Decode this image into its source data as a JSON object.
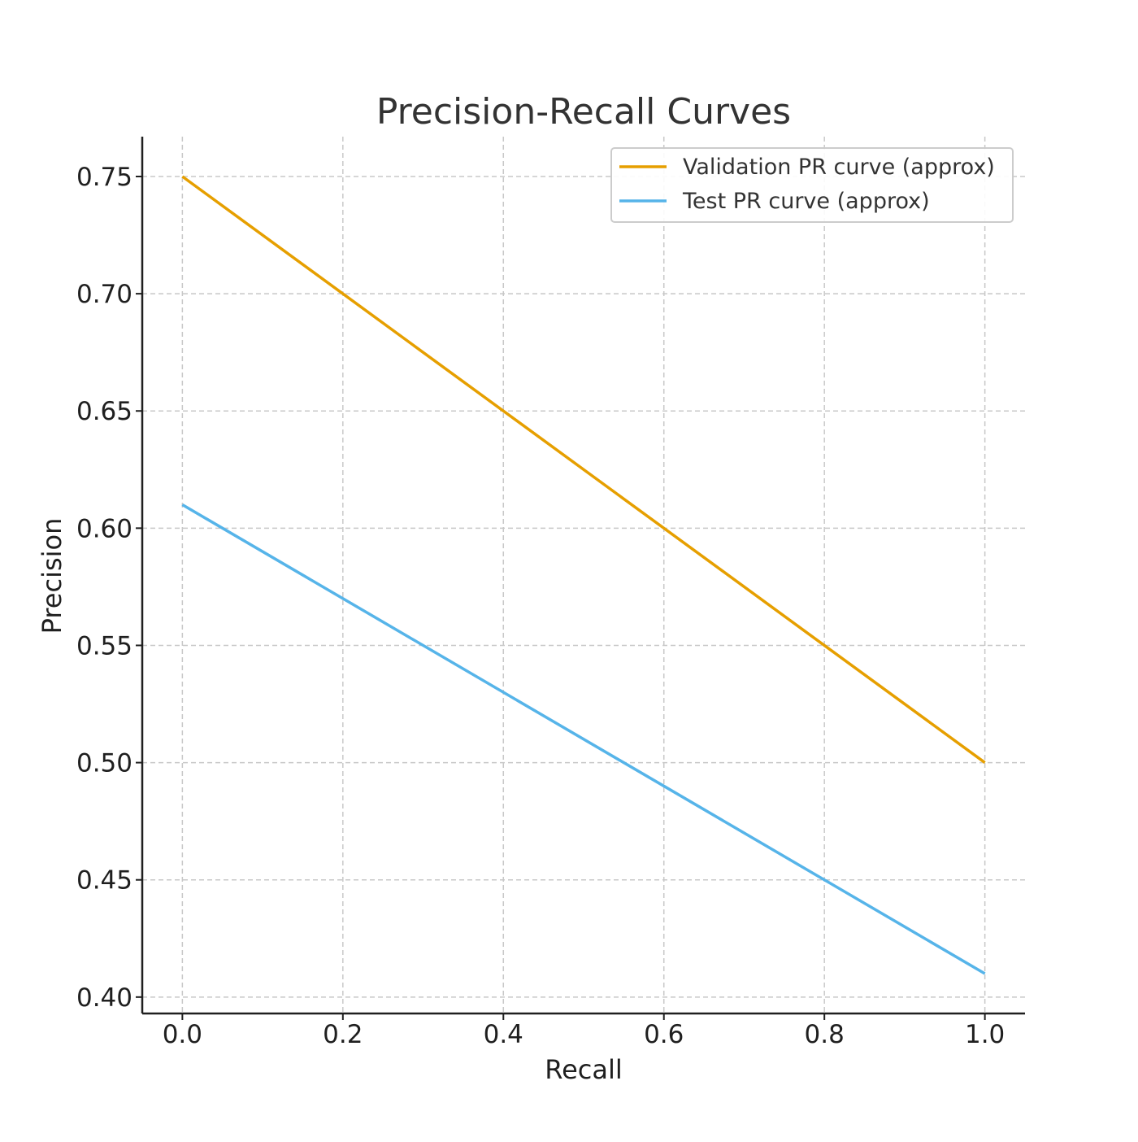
{
  "chart_data": {
    "type": "line",
    "title": "Precision-Recall Curves",
    "xlabel": "Recall",
    "ylabel": "Precision",
    "xlim": [
      -0.05,
      1.05
    ],
    "ylim": [
      0.393,
      0.767
    ],
    "xticks": [
      0.0,
      0.2,
      0.4,
      0.6,
      0.8,
      1.0
    ],
    "xtick_labels": [
      "0.0",
      "0.2",
      "0.4",
      "0.6",
      "0.8",
      "1.0"
    ],
    "yticks": [
      0.4,
      0.45,
      0.5,
      0.55,
      0.6,
      0.65,
      0.7,
      0.75
    ],
    "ytick_labels": [
      "0.40",
      "0.45",
      "0.50",
      "0.55",
      "0.60",
      "0.65",
      "0.70",
      "0.75"
    ],
    "grid": true,
    "legend_position": "top-right",
    "series": [
      {
        "name": "Validation PR curve (approx)",
        "color": "#E69F00",
        "x": [
          0.0,
          1.0
        ],
        "y": [
          0.75,
          0.5
        ]
      },
      {
        "name": "Test PR curve (approx)",
        "color": "#56B4E9",
        "x": [
          0.0,
          1.0
        ],
        "y": [
          0.61,
          0.41
        ]
      }
    ]
  }
}
